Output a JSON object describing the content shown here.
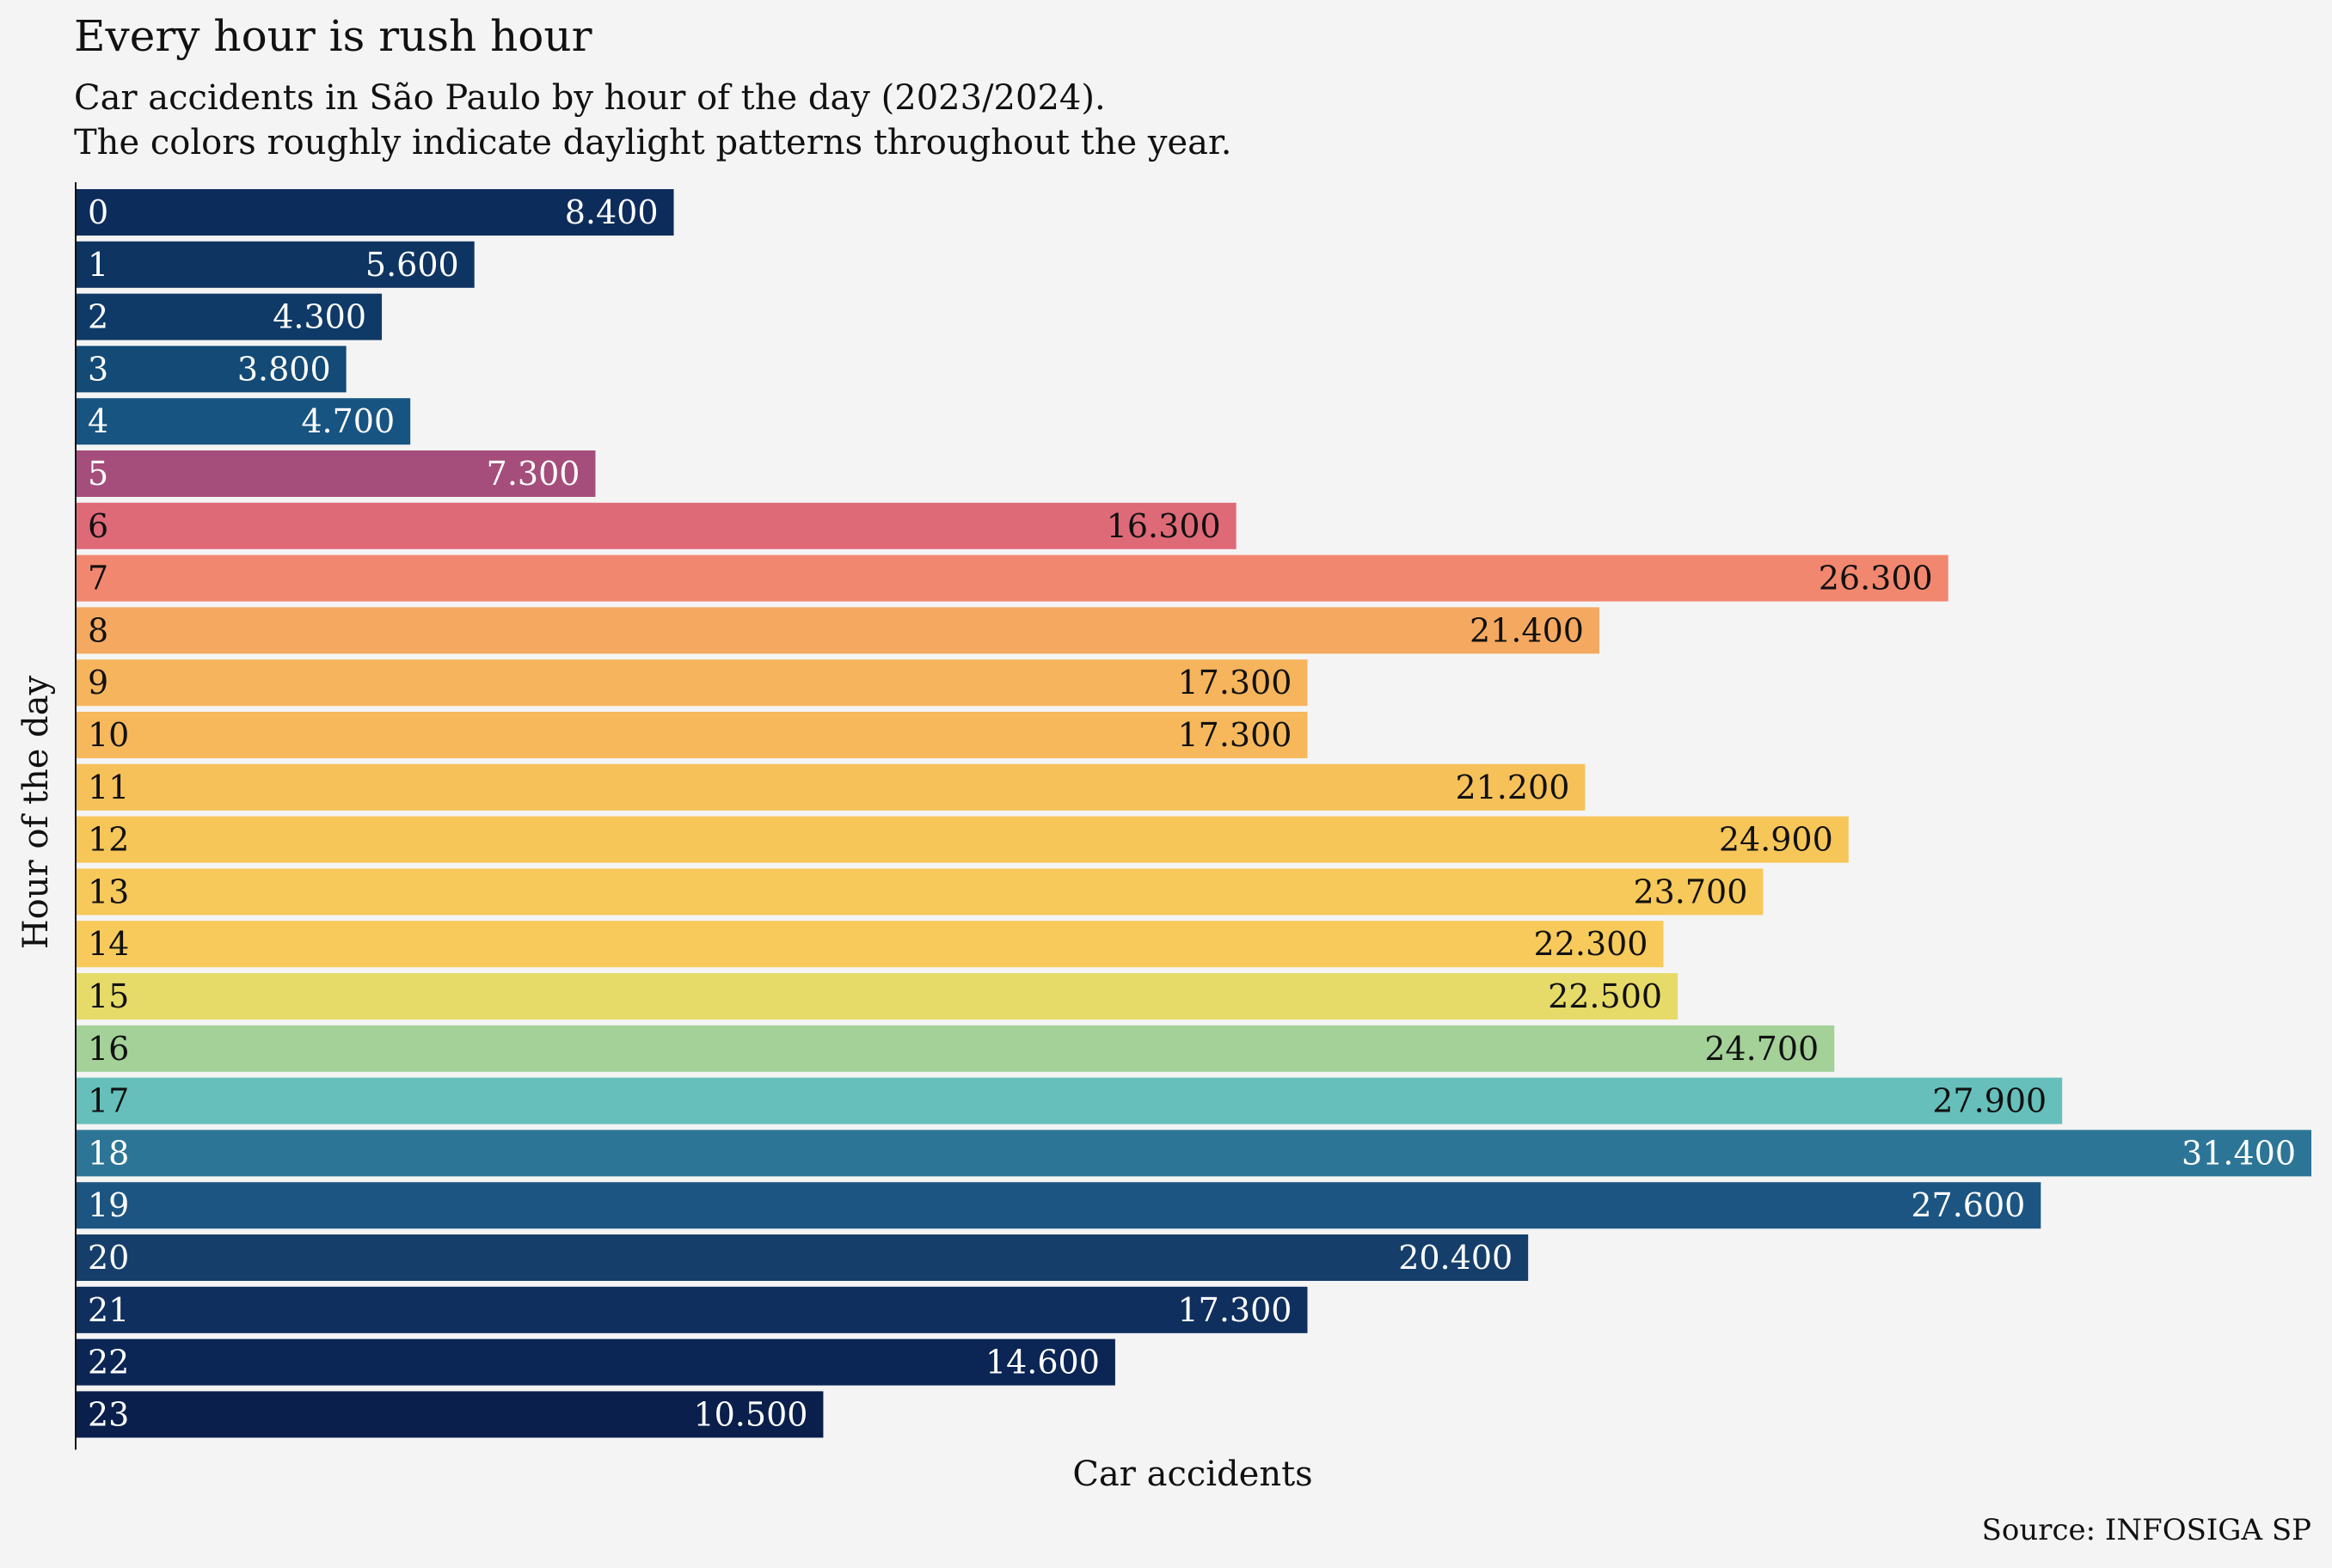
{
  "chart_data": {
    "type": "bar",
    "orientation": "horizontal",
    "title": "Every hour is rush hour",
    "subtitle": [
      "Car accidents in São Paulo by hour of the day (2023/2024).",
      "The colors roughly indicate daylight patterns throughout the year."
    ],
    "xlabel": "Car accidents",
    "ylabel": "Hour of the day",
    "source": "Source: INFOSIGA SP",
    "xlim": [
      0,
      31400
    ],
    "grid": false,
    "categories": [
      "0",
      "1",
      "2",
      "3",
      "4",
      "5",
      "6",
      "7",
      "8",
      "9",
      "10",
      "11",
      "12",
      "13",
      "14",
      "15",
      "16",
      "17",
      "18",
      "19",
      "20",
      "21",
      "22",
      "23"
    ],
    "values": [
      8400,
      5600,
      4300,
      3800,
      4700,
      7300,
      16300,
      26300,
      21400,
      17300,
      17300,
      21200,
      24900,
      23700,
      22300,
      22500,
      24700,
      27900,
      31400,
      27600,
      20400,
      17300,
      14600,
      10500
    ],
    "value_labels": [
      "8.400",
      "5.600",
      "4.300",
      "3.800",
      "4.700",
      "7.300",
      "16.300",
      "26.300",
      "21.400",
      "17.300",
      "17.300",
      "21.200",
      "24.900",
      "23.700",
      "22.300",
      "22.500",
      "24.700",
      "27.900",
      "31.400",
      "27.600",
      "20.400",
      "17.300",
      "14.600",
      "10.500"
    ],
    "colors": [
      "#0c2c5c",
      "#0e3462",
      "#0f3a67",
      "#134a76",
      "#175482",
      "#a54d7b",
      "#de6a78",
      "#f2876f",
      "#f5a960",
      "#f6b45c",
      "#f6b85b",
      "#f7c159",
      "#f7c659",
      "#f7c85a",
      "#f7ca5b",
      "#e6db69",
      "#a3d198",
      "#66bfba",
      "#2c7597",
      "#1c5582",
      "#153e6a",
      "#0f2f5e",
      "#0b2555",
      "#0a1f4b"
    ],
    "text_colors": [
      "#ffffff",
      "#ffffff",
      "#ffffff",
      "#ffffff",
      "#ffffff",
      "#ffffff",
      "#111111",
      "#111111",
      "#111111",
      "#111111",
      "#111111",
      "#111111",
      "#111111",
      "#111111",
      "#111111",
      "#111111",
      "#111111",
      "#111111",
      "#ffffff",
      "#ffffff",
      "#ffffff",
      "#ffffff",
      "#ffffff",
      "#ffffff"
    ]
  }
}
